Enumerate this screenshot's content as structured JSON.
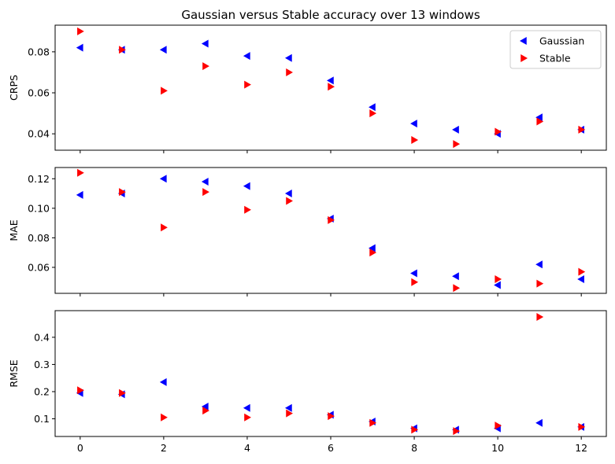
{
  "chart_data": {
    "type": "scatter",
    "title": "Gaussian versus Stable accuracy over 13 windows",
    "x": [
      0,
      1,
      2,
      3,
      4,
      5,
      6,
      7,
      8,
      9,
      10,
      11,
      12
    ],
    "xlim": [
      -0.6,
      12.6
    ],
    "xticks": [
      0,
      2,
      4,
      6,
      8,
      10,
      12
    ],
    "legend": {
      "placement": "top-right",
      "entries": [
        "Gaussian",
        "Stable"
      ]
    },
    "colors": {
      "Gaussian": "#0000ff",
      "Stable": "#ff0000"
    },
    "markers": {
      "Gaussian": "triangle-left",
      "Stable": "triangle-right"
    },
    "panels": [
      {
        "ylabel": "CRPS",
        "ylim": [
          0.032,
          0.093
        ],
        "yticks": [
          "0.04",
          "0.06",
          "0.08"
        ],
        "series": [
          {
            "name": "Gaussian",
            "values": [
              0.082,
              0.081,
              0.081,
              0.084,
              0.078,
              0.077,
              0.066,
              0.053,
              0.045,
              0.042,
              0.04,
              0.048,
              0.042
            ]
          },
          {
            "name": "Stable",
            "values": [
              0.09,
              0.081,
              0.061,
              0.073,
              0.064,
              0.07,
              0.063,
              0.05,
              0.037,
              0.035,
              0.041,
              0.046,
              0.042
            ]
          }
        ]
      },
      {
        "ylabel": "MAE",
        "ylim": [
          0.0424,
          0.1276
        ],
        "yticks": [
          "0.06",
          "0.08",
          "0.10",
          "0.12"
        ],
        "series": [
          {
            "name": "Gaussian",
            "values": [
              0.109,
              0.11,
              0.12,
              0.118,
              0.115,
              0.11,
              0.093,
              0.073,
              0.056,
              0.054,
              0.048,
              0.062,
              0.052
            ]
          },
          {
            "name": "Stable",
            "values": [
              0.124,
              0.111,
              0.087,
              0.111,
              0.099,
              0.105,
              0.092,
              0.07,
              0.05,
              0.046,
              0.052,
              0.049,
              0.057
            ]
          }
        ]
      },
      {
        "ylabel": "RMSE",
        "ylim": [
          0.035,
          0.498
        ],
        "yticks": [
          "0.1",
          "0.2",
          "0.3",
          "0.4"
        ],
        "series": [
          {
            "name": "Gaussian",
            "values": [
              0.195,
              0.19,
              0.235,
              0.145,
              0.14,
              0.14,
              0.115,
              0.09,
              0.065,
              0.06,
              0.065,
              0.085,
              0.07
            ]
          },
          {
            "name": "Stable",
            "values": [
              0.205,
              0.195,
              0.105,
              0.13,
              0.105,
              0.12,
              0.11,
              0.085,
              0.06,
              0.055,
              0.075,
              0.475,
              0.07
            ]
          }
        ]
      }
    ]
  }
}
